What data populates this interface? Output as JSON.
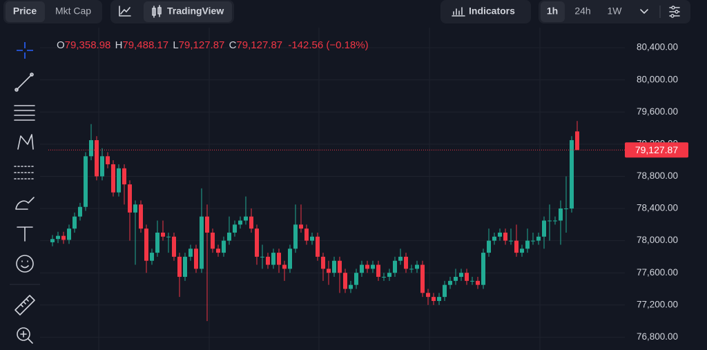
{
  "toolbar": {
    "tabs": [
      "Price",
      "Mkt Cap"
    ],
    "chart_button": "TradingView",
    "indicators": "Indicators",
    "ranges": [
      "1h",
      "24h",
      "1W"
    ]
  },
  "chart_data": {
    "type": "candlestick",
    "up_color": "#22ab94",
    "down_color": "#f23645",
    "grid": true,
    "ohlc_legend": [
      {
        "key": "O",
        "label": "79,358.98"
      },
      {
        "key": "H",
        "label": "79,488.17"
      },
      {
        "key": "L",
        "label": "79,127.87"
      },
      {
        "key": "C",
        "label": "79,127.87"
      }
    ],
    "change_label": "-142.56 (−0.18%)",
    "last_price": {
      "value": 79127.87,
      "label": "79,127.87"
    },
    "ylim": [
      76640,
      80650
    ],
    "yticks": [
      {
        "value": 76800,
        "label": "76,800.00"
      },
      {
        "value": 77200,
        "label": "77,200.00"
      },
      {
        "value": 77600,
        "label": "77,600.00"
      },
      {
        "value": 78000,
        "label": "78,000.00"
      },
      {
        "value": 78400,
        "label": "78,400.00"
      },
      {
        "value": 78800,
        "label": "78,800.00"
      },
      {
        "value": 79200,
        "label": "79,200.00"
      },
      {
        "value": 79600,
        "label": "79,600.00"
      },
      {
        "value": 80000,
        "label": "80,000.00"
      },
      {
        "value": 80400,
        "label": "80,400.00"
      }
    ],
    "open": [
      77980,
      78020,
      78060,
      78010,
      78150,
      78300,
      78420,
      79050,
      79250,
      78800,
      79050,
      78950,
      78600,
      78900,
      78700,
      78350,
      78450,
      78150,
      77750,
      77850,
      78100,
      78050,
      78050,
      77800,
      77550,
      77800,
      77900,
      77650,
      78300,
      78100,
      77900,
      77850,
      78000,
      78100,
      78200,
      78250,
      78300,
      78150,
      77800,
      77800,
      77700,
      77850,
      77700,
      77650,
      77900,
      78200,
      78150,
      78000,
      78050,
      77800,
      77650,
      77600,
      77750,
      77600,
      77400,
      77450,
      77600,
      77700,
      77650,
      77700,
      77550,
      77550,
      77600,
      77750,
      77800,
      77650,
      77650,
      77700,
      77350,
      77300,
      77250,
      77300,
      77450,
      77500,
      77550,
      77600,
      77500,
      77500,
      77450,
      77850,
      78000,
      78050,
      78100,
      78000,
      78000,
      77850,
      77900,
      78000,
      78000,
      78050,
      78250,
      78250,
      78250,
      78400,
      78400,
      79358.98
    ],
    "high": [
      78070,
      78110,
      78110,
      78200,
      78350,
      78470,
      79100,
      79450,
      79300,
      79150,
      79100,
      79000,
      78950,
      78950,
      78750,
      78500,
      78500,
      78200,
      77900,
      78250,
      78250,
      78100,
      78100,
      77850,
      77850,
      77950,
      77950,
      78650,
      78450,
      78150,
      77950,
      78050,
      78300,
      78250,
      78300,
      78550,
      78400,
      78200,
      77950,
      77850,
      77900,
      77900,
      77750,
      77950,
      78450,
      78450,
      78200,
      78100,
      78100,
      77850,
      77750,
      77800,
      77800,
      77650,
      77500,
      77650,
      77750,
      77750,
      77750,
      77750,
      77600,
      77650,
      77800,
      77900,
      77850,
      77700,
      77750,
      77750,
      77400,
      77350,
      77350,
      77500,
      77550,
      77650,
      77650,
      77650,
      77550,
      77550,
      77900,
      78150,
      78100,
      78150,
      78150,
      78150,
      78200,
      77950,
      78150,
      78100,
      78100,
      78300,
      78450,
      78300,
      78500,
      78800,
      79300,
      79488.17
    ],
    "low": [
      77930,
      77970,
      77960,
      77960,
      78100,
      78250,
      78370,
      79000,
      78750,
      78750,
      78900,
      78550,
      78550,
      78450,
      78000,
      77700,
      78100,
      77600,
      77700,
      77800,
      78000,
      77850,
      77750,
      77300,
      77500,
      77750,
      77600,
      77600,
      77000,
      77850,
      77800,
      77800,
      77950,
      78050,
      78150,
      78200,
      78100,
      77700,
      77650,
      77650,
      77650,
      77600,
      77500,
      77600,
      77850,
      78100,
      77950,
      77950,
      77750,
      77500,
      77450,
      77550,
      77350,
      77350,
      77350,
      77400,
      77550,
      77600,
      77600,
      77500,
      77500,
      77500,
      77550,
      77700,
      77600,
      77600,
      77600,
      77300,
      77200,
      77200,
      77200,
      77250,
      77400,
      77450,
      77500,
      77450,
      77450,
      77400,
      77400,
      77800,
      77950,
      78000,
      77950,
      77950,
      77800,
      77800,
      77850,
      77950,
      77950,
      77900,
      78000,
      78200,
      77950,
      78100,
      78350,
      79127.87
    ],
    "close": [
      78020,
      78060,
      78010,
      78150,
      78300,
      78420,
      79050,
      79250,
      78800,
      79050,
      78950,
      78600,
      78900,
      78700,
      78350,
      78450,
      78150,
      77750,
      77850,
      78100,
      78050,
      78050,
      77800,
      77550,
      77800,
      77900,
      77650,
      78300,
      78100,
      77900,
      77850,
      78000,
      78100,
      78200,
      78250,
      78300,
      78150,
      77800,
      77800,
      77700,
      77850,
      77700,
      77650,
      77900,
      78200,
      78150,
      78000,
      78050,
      77800,
      77650,
      77600,
      77750,
      77600,
      77400,
      77450,
      77600,
      77700,
      77650,
      77700,
      77550,
      77550,
      77600,
      77750,
      77800,
      77650,
      77650,
      77700,
      77350,
      77300,
      77250,
      77300,
      77450,
      77500,
      77550,
      77600,
      77500,
      77500,
      77450,
      77850,
      78000,
      78050,
      78100,
      78000,
      78000,
      77850,
      77900,
      78000,
      78000,
      78050,
      78250,
      78250,
      78250,
      78400,
      78400,
      79250,
      79127.87
    ]
  }
}
